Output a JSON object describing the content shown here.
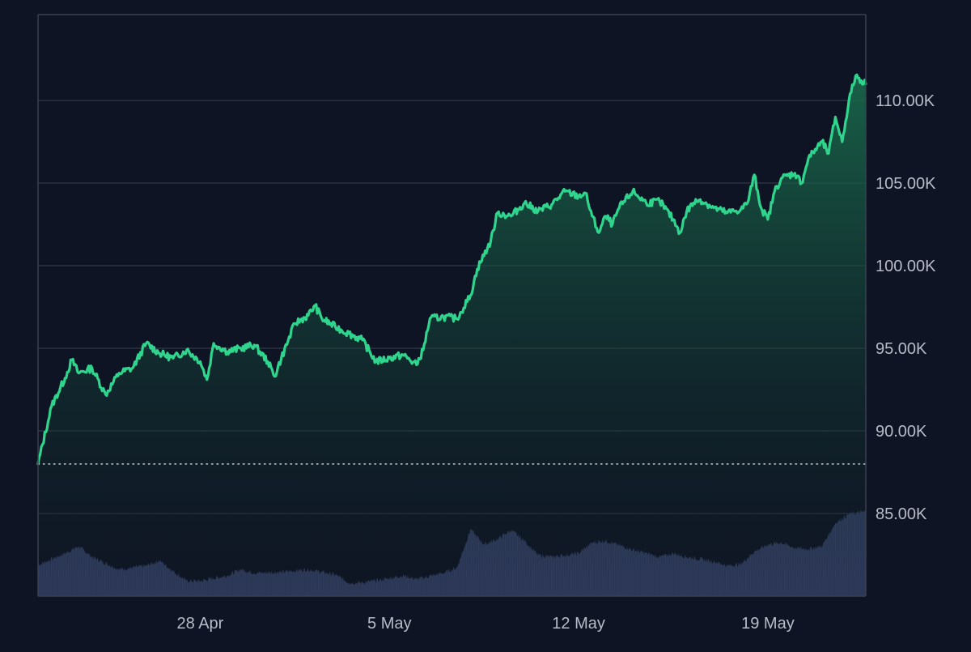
{
  "colors": {
    "background": "#0e1423",
    "grid": "#2c3242",
    "frame": "#3a4050",
    "line": "#2fd58c",
    "area_top": "#1a6f4e",
    "area_bottom": "#101a26",
    "baseline": "#c8ccd6",
    "volume": "#3b4770",
    "tick_text": "#b8bcc8"
  },
  "chart_data": {
    "type": "area",
    "y_axis": {
      "position": "right",
      "ticks": [
        85000,
        90000,
        95000,
        100000,
        105000,
        110000
      ],
      "tick_labels": [
        "85.00K",
        "90.00K",
        "95.00K",
        "100.00K",
        "105.00K",
        "110.00K"
      ],
      "range": [
        80000,
        115200
      ]
    },
    "x_axis": {
      "ticks": [
        {
          "date": "2025-04-28",
          "label": "28 Apr"
        },
        {
          "date": "2025-05-05",
          "label": "5 May"
        },
        {
          "date": "2025-05-12",
          "label": "12 May"
        },
        {
          "date": "2025-05-19",
          "label": "19 May"
        }
      ],
      "range": [
        "2025-04-22",
        "2025-05-22T15:00"
      ]
    },
    "grid": true,
    "baseline_value": 88000,
    "series": [
      {
        "kind": "price",
        "points": [
          [
            "2025-04-22",
            88000
          ],
          [
            "2025-04-22T12:00",
            91500
          ],
          [
            "2025-04-23",
            93200
          ],
          [
            "2025-04-23T06:00",
            94300
          ],
          [
            "2025-04-23T12:00",
            93500
          ],
          [
            "2025-04-24",
            93800
          ],
          [
            "2025-04-24T12:00",
            92200
          ],
          [
            "2025-04-25",
            93500
          ],
          [
            "2025-04-25T12:00",
            93800
          ],
          [
            "2025-04-26",
            95300
          ],
          [
            "2025-04-26T12:00",
            94700
          ],
          [
            "2025-04-27",
            94400
          ],
          [
            "2025-04-27T12:00",
            94900
          ],
          [
            "2025-04-28",
            94200
          ],
          [
            "2025-04-28T06:00",
            93100
          ],
          [
            "2025-04-28T12:00",
            95300
          ],
          [
            "2025-04-29",
            94800
          ],
          [
            "2025-04-29T12:00",
            95000
          ],
          [
            "2025-04-30",
            95200
          ],
          [
            "2025-04-30T12:00",
            94200
          ],
          [
            "2025-04-30T18:00",
            93300
          ],
          [
            "2025-05-01",
            94400
          ],
          [
            "2025-05-01T12:00",
            96500
          ],
          [
            "2025-05-02",
            97000
          ],
          [
            "2025-05-02T06:00",
            97600
          ],
          [
            "2025-05-02T12:00",
            96800
          ],
          [
            "2025-05-03",
            96300
          ],
          [
            "2025-05-03T12:00",
            95900
          ],
          [
            "2025-05-04",
            95500
          ],
          [
            "2025-05-04T12:00",
            94200
          ],
          [
            "2025-05-05",
            94400
          ],
          [
            "2025-05-05T12:00",
            94600
          ],
          [
            "2025-05-06",
            94000
          ],
          [
            "2025-05-06T06:00",
            94900
          ],
          [
            "2025-05-06T12:00",
            96800
          ],
          [
            "2025-05-07",
            96900
          ],
          [
            "2025-05-07T12:00",
            96800
          ],
          [
            "2025-05-08",
            98200
          ],
          [
            "2025-05-08T06:00",
            99800
          ],
          [
            "2025-05-08T18:00",
            101500
          ],
          [
            "2025-05-09",
            103200
          ],
          [
            "2025-05-09T12:00",
            103000
          ],
          [
            "2025-05-10",
            103800
          ],
          [
            "2025-05-10T12:00",
            103300
          ],
          [
            "2025-05-11",
            103700
          ],
          [
            "2025-05-11T12:00",
            104500
          ],
          [
            "2025-05-12",
            104200
          ],
          [
            "2025-05-12T06:00",
            104400
          ],
          [
            "2025-05-12T12:00",
            103000
          ],
          [
            "2025-05-12T18:00",
            102000
          ],
          [
            "2025-05-13",
            103000
          ],
          [
            "2025-05-13T06:00",
            102500
          ],
          [
            "2025-05-13T12:00",
            103500
          ],
          [
            "2025-05-14",
            104500
          ],
          [
            "2025-05-14T12:00",
            103800
          ],
          [
            "2025-05-15",
            103900
          ],
          [
            "2025-05-15T12:00",
            102800
          ],
          [
            "2025-05-15T18:00",
            102000
          ],
          [
            "2025-05-16",
            103300
          ],
          [
            "2025-05-16T06:00",
            103800
          ],
          [
            "2025-05-16T12:00",
            104000
          ],
          [
            "2025-05-17",
            103500
          ],
          [
            "2025-05-17T12:00",
            103200
          ],
          [
            "2025-05-18",
            103400
          ],
          [
            "2025-05-18T06:00",
            103800
          ],
          [
            "2025-05-18T12:00",
            105500
          ],
          [
            "2025-05-18T18:00",
            103500
          ],
          [
            "2025-05-19",
            102800
          ],
          [
            "2025-05-19T06:00",
            104500
          ],
          [
            "2025-05-19T12:00",
            105300
          ],
          [
            "2025-05-20",
            105600
          ],
          [
            "2025-05-20T06:00",
            105000
          ],
          [
            "2025-05-20T12:00",
            106500
          ],
          [
            "2025-05-21",
            107500
          ],
          [
            "2025-05-21T06:00",
            106800
          ],
          [
            "2025-05-21T12:00",
            109000
          ],
          [
            "2025-05-21T18:00",
            107500
          ],
          [
            "2025-05-22",
            110000
          ],
          [
            "2025-05-22T06:00",
            111500
          ],
          [
            "2025-05-22T15:00",
            111000
          ]
        ]
      },
      {
        "kind": "volume",
        "relative_levels": [
          [
            "2025-04-22",
            0.35
          ],
          [
            "2025-04-23",
            0.48
          ],
          [
            "2025-04-23T12:00",
            0.56
          ],
          [
            "2025-04-24",
            0.44
          ],
          [
            "2025-04-25",
            0.3
          ],
          [
            "2025-04-26",
            0.34
          ],
          [
            "2025-04-26T12:00",
            0.4
          ],
          [
            "2025-04-27",
            0.28
          ],
          [
            "2025-04-27T12:00",
            0.17
          ],
          [
            "2025-04-28",
            0.17
          ],
          [
            "2025-04-29",
            0.23
          ],
          [
            "2025-04-29T12:00",
            0.3
          ],
          [
            "2025-04-30",
            0.26
          ],
          [
            "2025-05-01",
            0.27
          ],
          [
            "2025-05-02",
            0.3
          ],
          [
            "2025-05-03",
            0.24
          ],
          [
            "2025-05-03T12:00",
            0.15
          ],
          [
            "2025-05-04",
            0.15
          ],
          [
            "2025-05-05",
            0.2
          ],
          [
            "2025-05-05T12:00",
            0.23
          ],
          [
            "2025-05-06",
            0.19
          ],
          [
            "2025-05-07",
            0.26
          ],
          [
            "2025-05-07T12:00",
            0.32
          ],
          [
            "2025-05-08",
            0.75
          ],
          [
            "2025-05-08T12:00",
            0.58
          ],
          [
            "2025-05-09",
            0.64
          ],
          [
            "2025-05-09T12:00",
            0.74
          ],
          [
            "2025-05-10",
            0.62
          ],
          [
            "2025-05-10T12:00",
            0.46
          ],
          [
            "2025-05-11",
            0.44
          ],
          [
            "2025-05-12",
            0.48
          ],
          [
            "2025-05-12T12:00",
            0.6
          ],
          [
            "2025-05-13",
            0.62
          ],
          [
            "2025-05-13T12:00",
            0.57
          ],
          [
            "2025-05-14",
            0.52
          ],
          [
            "2025-05-15",
            0.44
          ],
          [
            "2025-05-15T12:00",
            0.48
          ],
          [
            "2025-05-16",
            0.44
          ],
          [
            "2025-05-17",
            0.39
          ],
          [
            "2025-05-17T12:00",
            0.34
          ],
          [
            "2025-05-18",
            0.36
          ],
          [
            "2025-05-18T12:00",
            0.5
          ],
          [
            "2025-05-19",
            0.58
          ],
          [
            "2025-05-19T12:00",
            0.6
          ],
          [
            "2025-05-20",
            0.54
          ],
          [
            "2025-05-20T12:00",
            0.53
          ],
          [
            "2025-05-21",
            0.56
          ],
          [
            "2025-05-21T12:00",
            0.82
          ],
          [
            "2025-05-22",
            0.92
          ],
          [
            "2025-05-22T15:00",
            0.95
          ]
        ]
      }
    ]
  }
}
